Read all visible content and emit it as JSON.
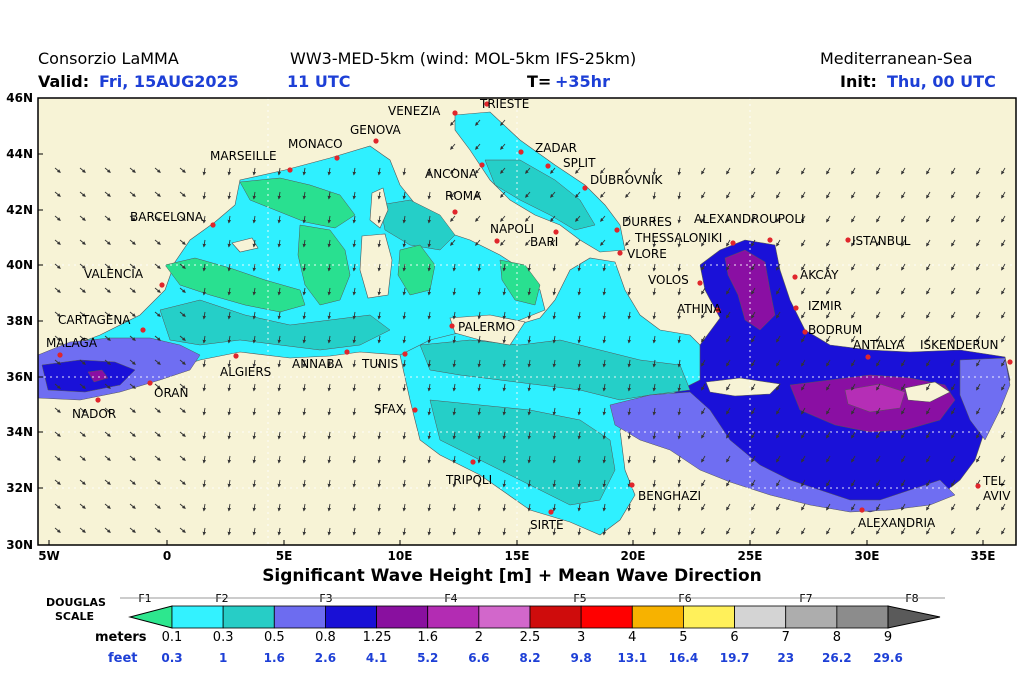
{
  "header": {
    "left_title": "Consorzio LaMMA",
    "model": "WW3-MED-5km (wind: MOL-5km IFS-25km)",
    "region": "Mediterranean-Sea",
    "valid_label": "Valid:",
    "valid_value": "Fri, 15AUG2025",
    "valid_hour": "11 UTC",
    "t_label": "T=",
    "t_value": "+35hr",
    "init_label": "Init:",
    "init_value": "Thu, 00 UTC"
  },
  "map": {
    "lat_labels": [
      "46N",
      "44N",
      "42N",
      "40N",
      "38N",
      "36N",
      "34N",
      "32N",
      "30N"
    ],
    "lon_labels": [
      "5W",
      "0",
      "5E",
      "10E",
      "15E",
      "20E",
      "25E",
      "30E",
      "35E"
    ],
    "cities": [
      "VENEZIA",
      "TRIESTE",
      "GENOVA",
      "MONACO",
      "MARSEILLE",
      "ZADAR",
      "SPLIT",
      "ANCONA",
      "DUBROVNIK",
      "ROMA",
      "BARCELONA",
      "NAPOLI",
      "BARI",
      "DURRES",
      "ALEXANDROUPOLI",
      "THESSALONIKI",
      "ISTANBUL",
      "VLORE",
      "VALENCIA",
      "VOLOS",
      "AKCAY",
      "IZMIR",
      "ATHINA",
      "CARTAGENA",
      "PALERMO",
      "BODRUM",
      "MALAGA",
      "ANTALYA",
      "ISKENDERUN",
      "TUNIS",
      "ALGIERS",
      "ANNABA",
      "ORAN",
      "NADOR",
      "SFAX",
      "TRIPOLI",
      "BENGHAZI",
      "SIRTE",
      "ALEXANDRIA",
      "TEL",
      "AVIV"
    ],
    "colors": {
      "land": "#f7f3d6",
      "c_lt01": "#29e090",
      "c_01_03": "#2ff0ff",
      "c_03_05": "#25cfc8",
      "c_05_08": "#6f6ef2",
      "c_08_125": "#1a11d8",
      "c_125_16": "#8a0fa3",
      "c_16_2": "#b52eb6"
    }
  },
  "subtitle": "Significant Wave Height [m] + Mean Wave Direction",
  "legend": {
    "douglas_label_1": "DOUGLAS",
    "douglas_label_2": "SCALE",
    "force_labels": [
      "F1",
      "F2",
      "F3",
      "F4",
      "F5",
      "F6",
      "F7",
      "F8"
    ],
    "meters_label": "meters",
    "feet_label": "feet",
    "meters": [
      "0.1",
      "0.3",
      "0.5",
      "0.8",
      "1.25",
      "1.6",
      "2",
      "2.5",
      "3",
      "4",
      "5",
      "6",
      "7",
      "8",
      "9"
    ],
    "feet": [
      "0.3",
      "1",
      "1.6",
      "2.6",
      "4.1",
      "5.2",
      "6.6",
      "8.2",
      "9.8",
      "13.1",
      "16.4",
      "19.7",
      "23",
      "26.2",
      "29.6"
    ],
    "bin_colors": [
      "#2de78e",
      "#33f2ff",
      "#27cdc6",
      "#6d6cf0",
      "#1910d6",
      "#89109f",
      "#b32cb3",
      "#d267cb",
      "#cf0c0c",
      "#ff0000",
      "#f7b200",
      "#fff05a",
      "#d4d4d4",
      "#adadad",
      "#8c8c8c",
      "#5a5a5a"
    ]
  }
}
